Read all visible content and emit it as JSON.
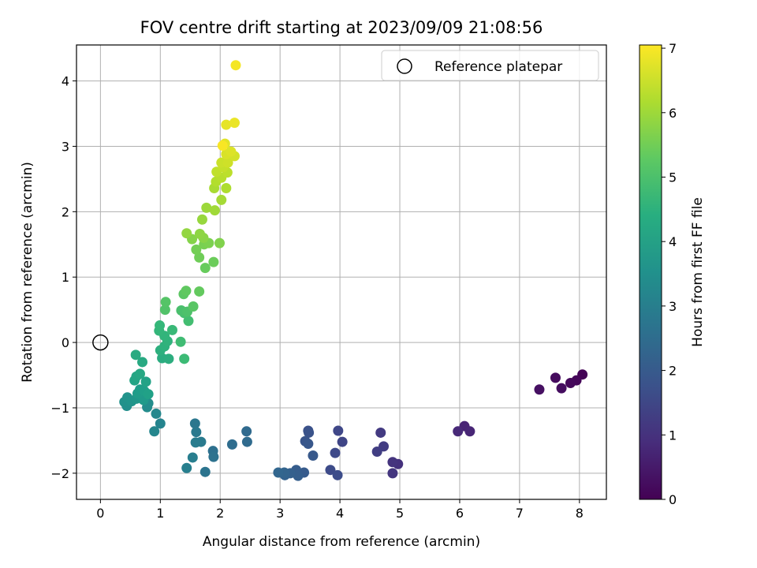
{
  "chart_data": {
    "type": "scatter",
    "title": "FOV centre drift starting at 2023/09/09 21:08:56",
    "xlabel": "Angular distance from reference (arcmin)",
    "ylabel": "Rotation from reference (arcmin)",
    "xlim": [
      -0.4,
      8.45
    ],
    "ylim": [
      -2.4,
      4.55
    ],
    "xticks": [
      0,
      1,
      2,
      3,
      4,
      5,
      6,
      7,
      8
    ],
    "yticks": [
      -2,
      -1,
      0,
      1,
      2,
      3,
      4
    ],
    "grid": true,
    "legend": {
      "placement": "top-right",
      "entries": [
        {
          "label": "Reference platepar",
          "marker": "open-circle"
        }
      ]
    },
    "reference_point": {
      "x": 0,
      "y": 0
    },
    "colorbar": {
      "label": "Hours from first FF file",
      "colormap": "viridis",
      "range": [
        0,
        7.05
      ],
      "ticks": [
        0,
        1,
        2,
        3,
        4,
        5,
        6,
        7
      ]
    },
    "points": [
      {
        "x": 8.05,
        "y": -0.49,
        "c": 0.05
      },
      {
        "x": 7.95,
        "y": -0.58,
        "c": 0.1
      },
      {
        "x": 7.85,
        "y": -0.62,
        "c": 0.15
      },
      {
        "x": 7.6,
        "y": -0.54,
        "c": 0.2
      },
      {
        "x": 7.7,
        "y": -0.7,
        "c": 0.25
      },
      {
        "x": 7.33,
        "y": -0.72,
        "c": 0.3
      },
      {
        "x": 6.08,
        "y": -1.28,
        "c": 0.7
      },
      {
        "x": 6.17,
        "y": -1.36,
        "c": 0.75
      },
      {
        "x": 5.97,
        "y": -1.36,
        "c": 0.8
      },
      {
        "x": 4.97,
        "y": -1.86,
        "c": 1.0
      },
      {
        "x": 4.88,
        "y": -1.83,
        "c": 1.05
      },
      {
        "x": 4.88,
        "y": -2.0,
        "c": 1.1
      },
      {
        "x": 4.68,
        "y": -1.38,
        "c": 1.2
      },
      {
        "x": 4.73,
        "y": -1.59,
        "c": 1.25
      },
      {
        "x": 4.62,
        "y": -1.67,
        "c": 1.3
      },
      {
        "x": 4.04,
        "y": -1.52,
        "c": 1.45
      },
      {
        "x": 3.97,
        "y": -1.35,
        "c": 1.5
      },
      {
        "x": 3.92,
        "y": -1.69,
        "c": 1.55
      },
      {
        "x": 3.84,
        "y": -1.95,
        "c": 1.6
      },
      {
        "x": 3.96,
        "y": -2.03,
        "c": 1.65
      },
      {
        "x": 3.47,
        "y": -1.35,
        "c": 1.75
      },
      {
        "x": 3.48,
        "y": -1.38,
        "c": 1.8
      },
      {
        "x": 3.42,
        "y": -1.51,
        "c": 1.85
      },
      {
        "x": 3.47,
        "y": -1.55,
        "c": 1.9
      },
      {
        "x": 3.55,
        "y": -1.73,
        "c": 1.95
      },
      {
        "x": 3.4,
        "y": -1.99,
        "c": 2.0
      },
      {
        "x": 3.27,
        "y": -1.95,
        "c": 2.05
      },
      {
        "x": 3.3,
        "y": -2.04,
        "c": 2.1
      },
      {
        "x": 3.17,
        "y": -2.0,
        "c": 2.15
      },
      {
        "x": 3.08,
        "y": -2.03,
        "c": 2.2
      },
      {
        "x": 3.07,
        "y": -1.99,
        "c": 2.25
      },
      {
        "x": 2.97,
        "y": -1.99,
        "c": 2.3
      },
      {
        "x": 2.44,
        "y": -1.36,
        "c": 2.4
      },
      {
        "x": 2.45,
        "y": -1.52,
        "c": 2.45
      },
      {
        "x": 2.2,
        "y": -1.56,
        "c": 2.5
      },
      {
        "x": 1.88,
        "y": -1.66,
        "c": 2.6
      },
      {
        "x": 1.89,
        "y": -1.75,
        "c": 2.65
      },
      {
        "x": 1.75,
        "y": -1.98,
        "c": 2.7
      },
      {
        "x": 1.58,
        "y": -1.24,
        "c": 2.8
      },
      {
        "x": 1.6,
        "y": -1.37,
        "c": 2.85
      },
      {
        "x": 1.68,
        "y": -1.52,
        "c": 2.9
      },
      {
        "x": 1.59,
        "y": -1.53,
        "c": 2.95
      },
      {
        "x": 1.54,
        "y": -1.76,
        "c": 3.0
      },
      {
        "x": 1.44,
        "y": -1.92,
        "c": 3.05
      },
      {
        "x": 1.0,
        "y": -1.24,
        "c": 3.2
      },
      {
        "x": 0.9,
        "y": -1.36,
        "c": 3.25
      },
      {
        "x": 0.93,
        "y": -1.09,
        "c": 3.3
      },
      {
        "x": 0.78,
        "y": -0.99,
        "c": 3.4
      },
      {
        "x": 0.8,
        "y": -0.93,
        "c": 3.45
      },
      {
        "x": 0.44,
        "y": -0.97,
        "c": 3.5
      },
      {
        "x": 0.4,
        "y": -0.91,
        "c": 3.55
      },
      {
        "x": 0.45,
        "y": -0.84,
        "c": 3.6
      },
      {
        "x": 0.52,
        "y": -0.9,
        "c": 3.65
      },
      {
        "x": 0.6,
        "y": -0.86,
        "c": 3.7
      },
      {
        "x": 0.68,
        "y": -0.82,
        "c": 3.75
      },
      {
        "x": 0.72,
        "y": -0.88,
        "c": 3.8
      },
      {
        "x": 0.62,
        "y": -0.78,
        "c": 3.85
      },
      {
        "x": 0.66,
        "y": -0.72,
        "c": 3.9
      },
      {
        "x": 0.73,
        "y": -0.74,
        "c": 3.95
      },
      {
        "x": 0.8,
        "y": -0.79,
        "c": 4.0
      },
      {
        "x": 0.76,
        "y": -0.6,
        "c": 4.05
      },
      {
        "x": 0.57,
        "y": -0.58,
        "c": 4.1
      },
      {
        "x": 0.6,
        "y": -0.52,
        "c": 4.15
      },
      {
        "x": 0.66,
        "y": -0.48,
        "c": 4.2
      },
      {
        "x": 0.7,
        "y": -0.3,
        "c": 4.25
      },
      {
        "x": 0.59,
        "y": -0.19,
        "c": 4.3
      },
      {
        "x": 1.03,
        "y": -0.24,
        "c": 4.35
      },
      {
        "x": 1.14,
        "y": -0.25,
        "c": 4.4
      },
      {
        "x": 1.0,
        "y": -0.12,
        "c": 4.45
      },
      {
        "x": 1.07,
        "y": -0.06,
        "c": 4.5
      },
      {
        "x": 1.12,
        "y": 0.02,
        "c": 4.55
      },
      {
        "x": 1.07,
        "y": 0.1,
        "c": 4.6
      },
      {
        "x": 0.98,
        "y": 0.18,
        "c": 4.65
      },
      {
        "x": 0.99,
        "y": 0.26,
        "c": 4.7
      },
      {
        "x": 1.2,
        "y": 0.19,
        "c": 4.75
      },
      {
        "x": 1.4,
        "y": -0.25,
        "c": 4.8
      },
      {
        "x": 1.34,
        "y": 0.01,
        "c": 4.85
      },
      {
        "x": 1.47,
        "y": 0.33,
        "c": 4.9
      },
      {
        "x": 1.4,
        "y": 0.45,
        "c": 4.95
      },
      {
        "x": 1.35,
        "y": 0.49,
        "c": 5.0
      },
      {
        "x": 1.45,
        "y": 0.47,
        "c": 5.05
      },
      {
        "x": 1.08,
        "y": 0.5,
        "c": 5.1
      },
      {
        "x": 1.09,
        "y": 0.62,
        "c": 5.15
      },
      {
        "x": 1.55,
        "y": 0.55,
        "c": 5.2
      },
      {
        "x": 1.39,
        "y": 0.74,
        "c": 5.25
      },
      {
        "x": 1.43,
        "y": 0.79,
        "c": 5.3
      },
      {
        "x": 1.65,
        "y": 0.78,
        "c": 5.35
      },
      {
        "x": 1.75,
        "y": 1.14,
        "c": 5.4
      },
      {
        "x": 1.89,
        "y": 1.23,
        "c": 5.45
      },
      {
        "x": 1.65,
        "y": 1.3,
        "c": 5.5
      },
      {
        "x": 1.6,
        "y": 1.42,
        "c": 5.55
      },
      {
        "x": 1.73,
        "y": 1.5,
        "c": 5.6
      },
      {
        "x": 1.81,
        "y": 1.52,
        "c": 5.65
      },
      {
        "x": 1.99,
        "y": 1.52,
        "c": 5.7
      },
      {
        "x": 1.53,
        "y": 1.58,
        "c": 5.75
      },
      {
        "x": 1.72,
        "y": 1.6,
        "c": 5.8
      },
      {
        "x": 1.66,
        "y": 1.66,
        "c": 5.85
      },
      {
        "x": 1.44,
        "y": 1.67,
        "c": 5.9
      },
      {
        "x": 1.7,
        "y": 1.88,
        "c": 5.95
      },
      {
        "x": 1.77,
        "y": 2.06,
        "c": 6.0
      },
      {
        "x": 1.91,
        "y": 2.02,
        "c": 6.05
      },
      {
        "x": 2.02,
        "y": 2.18,
        "c": 6.1
      },
      {
        "x": 1.9,
        "y": 2.36,
        "c": 6.15
      },
      {
        "x": 2.1,
        "y": 2.36,
        "c": 6.2
      },
      {
        "x": 1.93,
        "y": 2.46,
        "c": 6.25
      },
      {
        "x": 2.02,
        "y": 2.52,
        "c": 6.3
      },
      {
        "x": 2.12,
        "y": 2.6,
        "c": 6.35
      },
      {
        "x": 1.94,
        "y": 2.61,
        "c": 6.4
      },
      {
        "x": 2.05,
        "y": 2.68,
        "c": 6.45
      },
      {
        "x": 2.02,
        "y": 2.75,
        "c": 6.5
      },
      {
        "x": 2.13,
        "y": 2.75,
        "c": 6.55
      },
      {
        "x": 2.24,
        "y": 2.85,
        "c": 6.6
      },
      {
        "x": 2.1,
        "y": 2.88,
        "c": 6.65
      },
      {
        "x": 2.18,
        "y": 2.92,
        "c": 6.7
      },
      {
        "x": 2.08,
        "y": 3.04,
        "c": 6.75
      },
      {
        "x": 2.1,
        "y": 3.33,
        "c": 6.8
      },
      {
        "x": 2.24,
        "y": 3.36,
        "c": 6.85
      },
      {
        "x": 2.04,
        "y": 3.01,
        "c": 7.0
      },
      {
        "x": 2.26,
        "y": 4.24,
        "c": 6.95
      }
    ]
  }
}
